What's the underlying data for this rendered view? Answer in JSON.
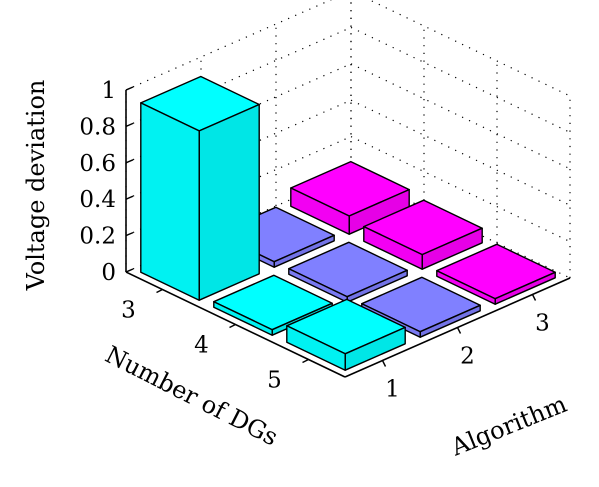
{
  "chart_data": {
    "type": "bar",
    "title": "",
    "zlabel": "Voltage deviation",
    "xlabel": "Number of DGs",
    "ylabel": "Algorithm",
    "x_categories": [
      "3",
      "4",
      "5"
    ],
    "y_categories": [
      "1",
      "2",
      "3"
    ],
    "z_ticks": [
      "0",
      "0.2",
      "0.4",
      "0.6",
      "0.8",
      "1"
    ],
    "zlim": [
      0,
      1
    ],
    "grid": true,
    "values": [
      {
        "dgs": "3",
        "algorithm": "1",
        "value": 0.93,
        "color": "#00ffff"
      },
      {
        "dgs": "3",
        "algorithm": "2",
        "value": 0.03,
        "color": "#8080ff"
      },
      {
        "dgs": "3",
        "algorithm": "3",
        "value": 0.1,
        "color": "#ff00ff"
      },
      {
        "dgs": "4",
        "algorithm": "1",
        "value": 0.03,
        "color": "#00ffff"
      },
      {
        "dgs": "4",
        "algorithm": "2",
        "value": 0.03,
        "color": "#8080ff"
      },
      {
        "dgs": "4",
        "algorithm": "3",
        "value": 0.08,
        "color": "#ff00ff"
      },
      {
        "dgs": "5",
        "algorithm": "1",
        "value": 0.09,
        "color": "#00ffff"
      },
      {
        "dgs": "5",
        "algorithm": "2",
        "value": 0.03,
        "color": "#8080ff"
      },
      {
        "dgs": "5",
        "algorithm": "3",
        "value": 0.03,
        "color": "#ff00ff"
      }
    ]
  }
}
